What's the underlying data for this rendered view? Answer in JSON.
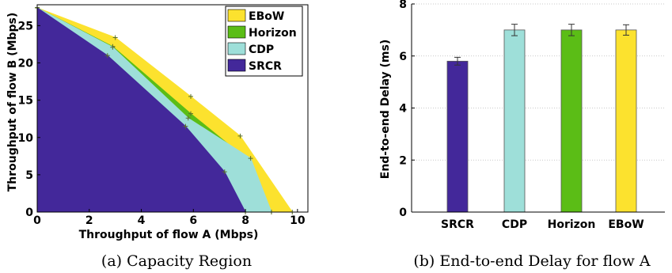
{
  "chart_data": [
    {
      "type": "area",
      "caption": "(a) Capacity Region",
      "xlabel": "Throughput of flow A (Mbps)",
      "ylabel": "Throughput of flow B (Mbps)",
      "xlim": [
        0,
        10.4
      ],
      "ylim": [
        0,
        27.8
      ],
      "xticks": [
        0,
        2,
        4,
        6,
        8,
        10
      ],
      "yticks": [
        0,
        5,
        10,
        15,
        20,
        25
      ],
      "legend_position": "top-right",
      "series": [
        {
          "name": "EBoW",
          "color": "#fce22e",
          "points": [
            [
              0,
              27.4
            ],
            [
              3.0,
              23.4
            ],
            [
              5.9,
              15.5
            ],
            [
              7.8,
              10.2
            ],
            [
              9.8,
              0
            ]
          ]
        },
        {
          "name": "Horizon",
          "color": "#5bbd16",
          "points": [
            [
              0,
              27.4
            ],
            [
              2.9,
              22.2
            ],
            [
              5.9,
              13.2
            ],
            [
              7.8,
              7.8
            ],
            [
              9.0,
              0
            ]
          ]
        },
        {
          "name": "CDP",
          "color": "#9edfd9",
          "points": [
            [
              0,
              27.4
            ],
            [
              2.9,
              22.1
            ],
            [
              5.8,
              12.6
            ],
            [
              8.2,
              7.2
            ],
            [
              9.0,
              0
            ]
          ]
        },
        {
          "name": "SRCR",
          "color": "#43289a",
          "points": [
            [
              0,
              27.4
            ],
            [
              2.7,
              21.0
            ],
            [
              5.7,
              11.5
            ],
            [
              7.2,
              5.4
            ],
            [
              8.0,
              0
            ]
          ]
        }
      ]
    },
    {
      "type": "bar",
      "caption": "(b) End-to-end Delay for flow A",
      "ylabel": "End-to-end Delay (ms)",
      "ylim": [
        0,
        8
      ],
      "yticks": [
        0,
        2,
        4,
        6,
        8
      ],
      "grid": true,
      "categories": [
        "SRCR",
        "CDP",
        "Horizon",
        "EBoW"
      ],
      "values": [
        5.8,
        7.0,
        7.0,
        7.0
      ],
      "errors": [
        0.15,
        0.22,
        0.22,
        0.2
      ],
      "colors": [
        "#43289a",
        "#9edfd9",
        "#5bbd16",
        "#fce22e"
      ]
    }
  ]
}
